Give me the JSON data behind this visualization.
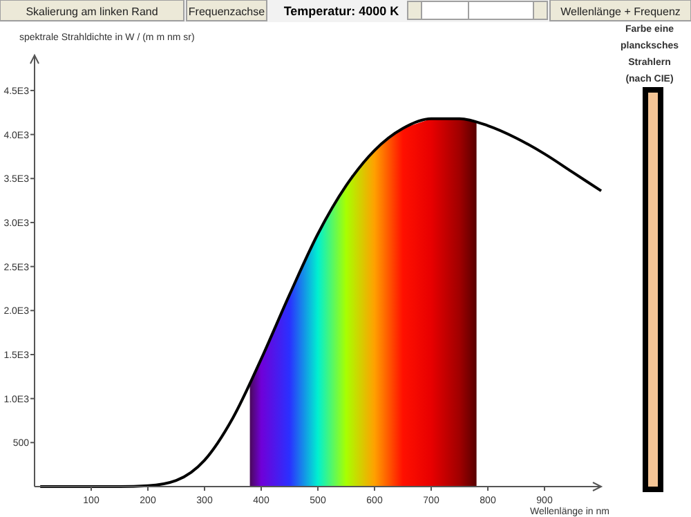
{
  "chart_data": {
    "type": "line",
    "title": "Temperatur: 4000 K",
    "xlabel": "Wellenlänge in nm",
    "ylabel": "spektrale Strahldichte in W / (m m nm sr)",
    "annotations": [
      "Skalierung am linken Rand",
      "Frequenzachse",
      "Wellenlänge + Frequenz",
      "Farbe eine plancksches Strahlern (nach CIE)"
    ],
    "xlim": [
      0,
      1000
    ],
    "ylim": [
      0,
      4900
    ],
    "xticks": [
      100,
      200,
      300,
      400,
      500,
      600,
      700,
      800,
      900
    ],
    "yticks": [
      500,
      {
        "value": 1000,
        "label": "1.0E3"
      },
      {
        "value": 1500,
        "label": "1.5E3"
      },
      {
        "value": 2000,
        "label": "2.0E3"
      },
      {
        "value": 2500,
        "label": "2.5E3"
      },
      {
        "value": 3000,
        "label": "3.0E3"
      },
      {
        "value": 3500,
        "label": "3.5E3"
      },
      {
        "value": 4000,
        "label": "4.0E3"
      },
      {
        "value": 4500,
        "label": "4.5E3"
      }
    ],
    "grid": false,
    "series": [
      {
        "type": "area",
        "x": [
          380,
          400,
          450,
          500,
          550,
          600,
          650,
          700,
          750,
          780
        ],
        "values": [
          1160,
          1450,
          2180,
          2870,
          3420,
          3820,
          4070,
          4180,
          4180,
          4140
        ],
        "colors": [
          "#4a0a5a",
          "#7000d8",
          "#2a30ff",
          "#00f0d0",
          "#a8ff00",
          "#ffa000",
          "#ff1000",
          "#e80000",
          "#a00000",
          "#580000"
        ]
      },
      {
        "color": "#000000",
        "x": [
          10,
          100,
          150,
          200,
          250,
          300,
          350,
          400,
          450,
          500,
          550,
          600,
          650,
          700,
          750,
          800,
          850,
          900,
          950,
          1000
        ],
        "values": [
          0,
          0,
          0,
          10,
          70,
          300,
          780,
          1450,
          2180,
          2870,
          3420,
          3820,
          4070,
          4180,
          4180,
          4100,
          3960,
          3780,
          3570,
          3360
        ]
      }
    ]
  }
}
